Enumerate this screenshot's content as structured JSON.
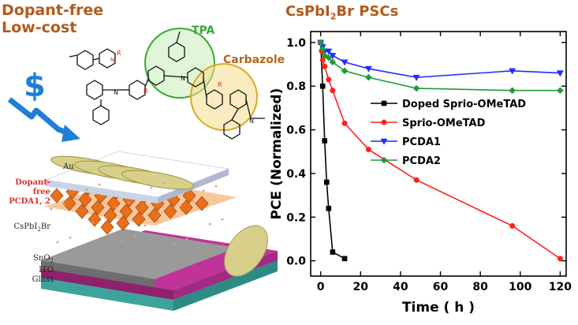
{
  "left_panel": {
    "headline_line1": "Dopant-free",
    "headline_line2": "Low-cost",
    "dollar_symbol": "$",
    "molecule_labels": {
      "tpa": "TPA",
      "carbazole": "Carbazole",
      "r_group": "R"
    },
    "device_layers": {
      "au": "Au",
      "htl_line1": "Dopant-free",
      "htl_line2": "PCDA1, 2",
      "perovskite_base": "CsPbI",
      "perovskite_sub": "2",
      "perovskite_end": "Br",
      "sno2_base": "SnO",
      "sno2_sub": "2",
      "ito": "ITO",
      "glass": "Glass"
    },
    "colors": {
      "headline": "#b35a1a",
      "dollar": "#1f7ed6",
      "tpa_circle": "#3aa832",
      "carbazole_circle": "#e2b038",
      "gold": "#d8cf8a",
      "perovskite": "#e8701a",
      "sno2_ito": "#c0349a",
      "glass": "#6fd0c8"
    }
  },
  "chart_title": {
    "base": "CsPbI",
    "sub": "2",
    "end": "Br PSCs"
  },
  "chart_data": {
    "type": "line",
    "title": "CsPbI2Br PSCs",
    "xlabel": "Time ( h )",
    "ylabel": "PCE (Normalized)",
    "xlim": [
      -5,
      123
    ],
    "ylim": [
      -0.07,
      1.05
    ],
    "xticks": [
      0,
      20,
      40,
      60,
      80,
      100,
      120
    ],
    "yticks": [
      0.0,
      0.2,
      0.4,
      0.6,
      0.8,
      1.0
    ],
    "xtick_labels": [
      "0",
      "20",
      "40",
      "60",
      "80",
      "100",
      "120"
    ],
    "ytick_labels": [
      "0.0",
      "0.2",
      "0.4",
      "0.6",
      "0.8",
      "1.0"
    ],
    "grid": false,
    "legend_position": "center-right",
    "series": [
      {
        "name": "Doped Sprio-OMeTAD",
        "color": "#000000",
        "marker": "square",
        "x": [
          0,
          1,
          2,
          3,
          4,
          6,
          12
        ],
        "y": [
          1.0,
          0.8,
          0.55,
          0.36,
          0.24,
          0.04,
          0.01
        ]
      },
      {
        "name": "Sprio-OMeTAD",
        "color": "#ff2020",
        "marker": "circle",
        "x": [
          0,
          0.5,
          1,
          2,
          4,
          6,
          12,
          24,
          48,
          96,
          120
        ],
        "y": [
          1.0,
          0.96,
          0.92,
          0.89,
          0.83,
          0.78,
          0.63,
          0.51,
          0.37,
          0.16,
          0.01
        ]
      },
      {
        "name": "PCDA1",
        "color": "#1f2cff",
        "marker": "triangle-down",
        "x": [
          0,
          1,
          2,
          4,
          6,
          12,
          24,
          48,
          96,
          120
        ],
        "y": [
          1.0,
          0.98,
          0.96,
          0.96,
          0.94,
          0.91,
          0.88,
          0.84,
          0.87,
          0.86
        ]
      },
      {
        "name": "PCDA2",
        "color": "#1f9a3a",
        "marker": "diamond",
        "x": [
          0,
          1,
          2,
          4,
          6,
          12,
          24,
          48,
          96,
          120
        ],
        "y": [
          1.0,
          0.97,
          0.94,
          0.93,
          0.91,
          0.87,
          0.84,
          0.79,
          0.78,
          0.78
        ]
      }
    ]
  }
}
